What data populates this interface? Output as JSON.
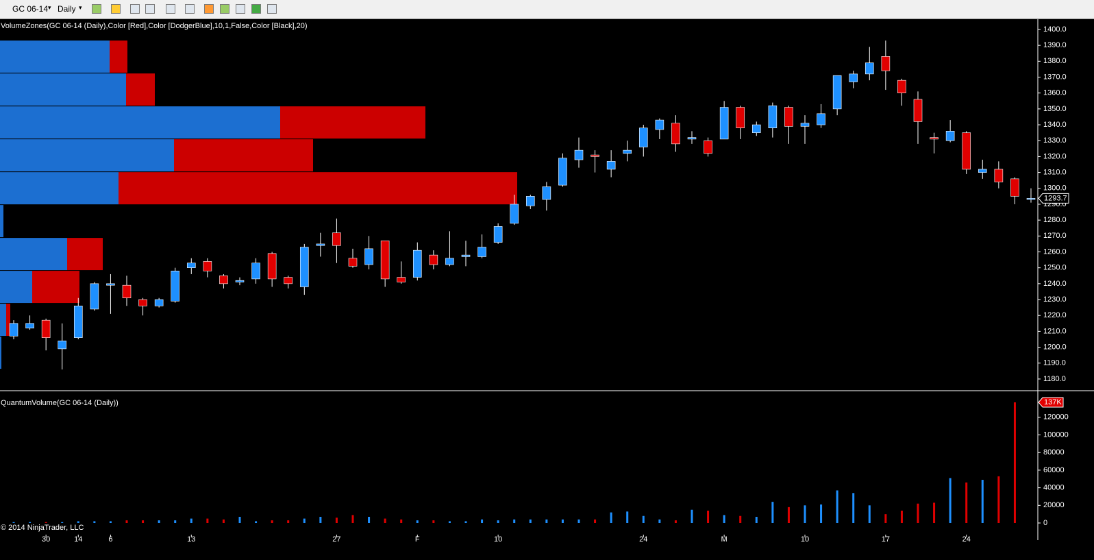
{
  "toolbar": {
    "instrument": "GC 06-14",
    "interval": "Daily"
  },
  "copyright": "© 2014 NinjaTrader, LLC",
  "chart_data": [
    {
      "type": "candlestick",
      "up_color": "#1e90ff",
      "down_color": "#e00000",
      "categories": [
        null,
        null,
        "30",
        null,
        "14",
        null,
        "6",
        null,
        null,
        null,
        null,
        "13",
        null,
        null,
        null,
        null,
        null,
        null,
        null,
        null,
        "27",
        null,
        null,
        null,
        null,
        "F",
        null,
        null,
        null,
        null,
        "10",
        null,
        null,
        null,
        null,
        null,
        null,
        null,
        null,
        "24",
        null,
        null,
        null,
        null,
        "M",
        null,
        null,
        null,
        null,
        "10",
        null,
        null,
        null,
        null,
        "17",
        null,
        null,
        null,
        null,
        "24",
        null,
        null,
        null,
        null
      ],
      "open": [
        1207,
        1212,
        1217,
        1199,
        1206,
        1224,
        1239,
        1239,
        1230,
        1226,
        1229,
        1250,
        1254,
        1245,
        1241,
        1243,
        1259,
        1244,
        1238,
        1264,
        1272,
        1256,
        1252,
        1267,
        1244,
        1244,
        1258,
        1252,
        1257,
        1257,
        1266,
        1278,
        1289,
        1293,
        1302,
        1318,
        1321,
        1312,
        1322,
        1326,
        1337,
        1341,
        1331,
        1330,
        1331,
        1351,
        1335,
        1338,
        1351,
        1339,
        1340,
        1350,
        1367,
        1372,
        1383,
        1368,
        1356,
        1332,
        1330,
        1335,
        1310,
        1312,
        1306,
        1293
      ],
      "high": [
        1217,
        1220,
        1218,
        1215,
        1231,
        1241,
        1246,
        1245,
        1231,
        1231,
        1250,
        1256,
        1256,
        1246,
        1244,
        1256,
        1260,
        1245,
        1265,
        1272,
        1281,
        1262,
        1270,
        1267,
        1254,
        1266,
        1261,
        1273,
        1267,
        1271,
        1278,
        1296,
        1296,
        1304,
        1322,
        1332,
        1324,
        1324,
        1330,
        1340,
        1344,
        1346,
        1336,
        1332,
        1355,
        1352,
        1342,
        1354,
        1352,
        1346,
        1353,
        1371,
        1374,
        1389,
        1393,
        1369,
        1361,
        1335,
        1343,
        1336,
        1318,
        1317,
        1307,
        1300
      ],
      "low": [
        1205,
        1211,
        1198,
        1186,
        1205,
        1223,
        1221,
        1226,
        1220,
        1225,
        1228,
        1246,
        1244,
        1237,
        1239,
        1240,
        1238,
        1237,
        1233,
        1257,
        1253,
        1250,
        1249,
        1238,
        1240,
        1242,
        1249,
        1251,
        1251,
        1256,
        1265,
        1277,
        1287,
        1286,
        1301,
        1313,
        1310,
        1307,
        1317,
        1320,
        1331,
        1323,
        1328,
        1320,
        1331,
        1331,
        1333,
        1332,
        1328,
        1328,
        1338,
        1346,
        1363,
        1368,
        1362,
        1352,
        1328,
        1322,
        1329,
        1309,
        1306,
        1300,
        1290,
        1291
      ],
      "close": [
        1215,
        1215,
        1206,
        1204,
        1226,
        1240,
        1240,
        1231,
        1226,
        1230,
        1248,
        1253,
        1248,
        1240,
        1242,
        1253,
        1243,
        1240,
        1263,
        1265,
        1264,
        1251,
        1262,
        1243,
        1241,
        1261,
        1252,
        1256,
        1258,
        1263,
        1276,
        1290,
        1295,
        1301,
        1319,
        1324,
        1320,
        1317,
        1324,
        1338,
        1343,
        1328,
        1332,
        1322,
        1351,
        1338,
        1340,
        1352,
        1339,
        1341,
        1347,
        1371,
        1372,
        1379,
        1374,
        1360,
        1342,
        1331,
        1336,
        1312,
        1312,
        1304,
        1295,
        1293.7
      ],
      "last_price": 1293.7,
      "ylim": [
        1173.5,
        1405.6
      ],
      "yticks": [
        {
          "value": 1180,
          "label": "1180.0"
        },
        {
          "value": 1190,
          "label": "1190.0"
        },
        {
          "value": 1200,
          "label": "1200.0"
        },
        {
          "value": 1210,
          "label": "1210.0"
        },
        {
          "value": 1220,
          "label": "1220.0"
        },
        {
          "value": 1230,
          "label": "1230.0"
        },
        {
          "value": 1240,
          "label": "1240.0"
        },
        {
          "value": 1250,
          "label": "1250.0"
        },
        {
          "value": 1260,
          "label": "1260.0"
        },
        {
          "value": 1270,
          "label": "1270.0"
        },
        {
          "value": 1280,
          "label": "1280.0"
        },
        {
          "value": 1290,
          "label": "1290.0"
        },
        {
          "value": 1300,
          "label": "1300.0"
        },
        {
          "value": 1310,
          "label": "1310.0"
        },
        {
          "value": 1320,
          "label": "1320.0"
        },
        {
          "value": 1330,
          "label": "1330.0"
        },
        {
          "value": 1340,
          "label": "1340.0"
        },
        {
          "value": 1350,
          "label": "1350.0"
        },
        {
          "value": 1360,
          "label": "1360.0"
        },
        {
          "value": 1370,
          "label": "1370.0"
        },
        {
          "value": 1380,
          "label": "1380.0"
        },
        {
          "value": 1390,
          "label": "1390.0"
        },
        {
          "value": 1400,
          "label": "1400.0"
        }
      ]
    },
    {
      "type": "volume-zones",
      "title": "VolumeZones(GC 06-14 (Daily),Color [Red],Color [DodgerBlue],10,1,False,Color [Black],20)",
      "up_color": "#1c6fd1",
      "down_color": "#cc0000",
      "up_values": [
        64000,
        73600,
        163600,
        101600,
        69200,
        2000,
        39200,
        18800,
        3600,
        800
      ],
      "down_values": [
        10400,
        16800,
        84800,
        81200,
        232800,
        0,
        20800,
        27600,
        2400,
        0
      ]
    },
    {
      "type": "bar",
      "title": "QuantumVolume(GC 06-14 (Daily))",
      "up_color": "#1e90ff",
      "down_color": "#e00000",
      "values": [
        1000,
        1000,
        1000,
        1000,
        2000,
        2000,
        2000,
        3000,
        3000,
        3000,
        3000,
        5000,
        5000,
        4000,
        7000,
        2000,
        3000,
        3000,
        5000,
        7000,
        6000,
        9000,
        7000,
        5000,
        4000,
        3000,
        3000,
        2000,
        2000,
        4000,
        3000,
        4000,
        4000,
        4000,
        4000,
        4000,
        4000,
        12000,
        13000,
        8000,
        4000,
        3000,
        15000,
        14000,
        9000,
        8000,
        7000,
        24000,
        18000,
        20000,
        21000,
        37000,
        34000,
        20000,
        10000,
        14000,
        22000,
        23000,
        51000,
        46000,
        49000,
        53000,
        137000,
        0
      ],
      "last_label": {
        "value": 137000,
        "label": "137K"
      },
      "ylim": [
        0,
        144000
      ],
      "yticks": [
        0,
        20000,
        40000,
        60000,
        80000,
        100000,
        120000
      ]
    }
  ]
}
